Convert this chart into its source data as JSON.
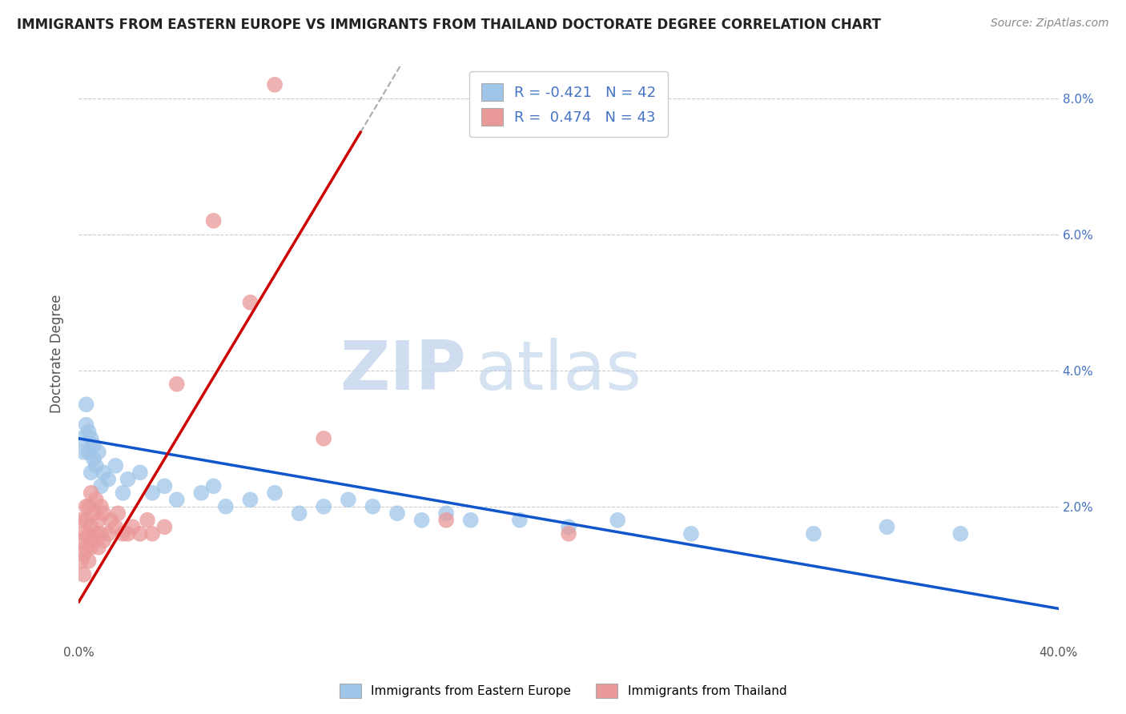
{
  "title": "IMMIGRANTS FROM EASTERN EUROPE VS IMMIGRANTS FROM THAILAND DOCTORATE DEGREE CORRELATION CHART",
  "source": "Source: ZipAtlas.com",
  "ylabel": "Doctorate Degree",
  "xlim": [
    0.0,
    0.4
  ],
  "ylim": [
    0.0,
    0.085
  ],
  "blue_R": -0.421,
  "blue_N": 42,
  "pink_R": 0.474,
  "pink_N": 43,
  "blue_color": "#9fc5e8",
  "pink_color": "#ea9999",
  "blue_line_color": "#1155cc",
  "pink_line_color": "#cc0000",
  "watermark_zip": "ZIP",
  "watermark_atlas": "atlas",
  "legend_label_blue": "Immigrants from Eastern Europe",
  "legend_label_pink": "Immigrants from Thailand",
  "background_color": "#ffffff",
  "grid_color": "#cccccc",
  "blue_scatter_x": [
    0.001,
    0.002,
    0.003,
    0.003,
    0.004,
    0.004,
    0.005,
    0.005,
    0.006,
    0.006,
    0.007,
    0.008,
    0.009,
    0.01,
    0.012,
    0.015,
    0.018,
    0.02,
    0.025,
    0.03,
    0.035,
    0.04,
    0.05,
    0.055,
    0.06,
    0.07,
    0.08,
    0.09,
    0.1,
    0.11,
    0.12,
    0.13,
    0.14,
    0.15,
    0.16,
    0.18,
    0.2,
    0.22,
    0.25,
    0.3,
    0.33,
    0.36
  ],
  "blue_scatter_y": [
    0.03,
    0.028,
    0.032,
    0.035,
    0.031,
    0.028,
    0.03,
    0.025,
    0.027,
    0.029,
    0.026,
    0.028,
    0.023,
    0.025,
    0.024,
    0.026,
    0.022,
    0.024,
    0.025,
    0.022,
    0.023,
    0.021,
    0.022,
    0.023,
    0.02,
    0.021,
    0.022,
    0.019,
    0.02,
    0.021,
    0.02,
    0.019,
    0.018,
    0.019,
    0.018,
    0.018,
    0.017,
    0.018,
    0.016,
    0.016,
    0.017,
    0.016
  ],
  "pink_scatter_x": [
    0.001,
    0.001,
    0.001,
    0.002,
    0.002,
    0.002,
    0.003,
    0.003,
    0.003,
    0.004,
    0.004,
    0.004,
    0.005,
    0.005,
    0.005,
    0.006,
    0.006,
    0.007,
    0.007,
    0.008,
    0.008,
    0.009,
    0.009,
    0.01,
    0.01,
    0.012,
    0.013,
    0.015,
    0.016,
    0.018,
    0.02,
    0.022,
    0.025,
    0.028,
    0.03,
    0.035,
    0.04,
    0.055,
    0.07,
    0.08,
    0.1,
    0.15,
    0.2
  ],
  "pink_scatter_y": [
    0.012,
    0.015,
    0.018,
    0.01,
    0.013,
    0.016,
    0.014,
    0.018,
    0.02,
    0.012,
    0.016,
    0.02,
    0.014,
    0.017,
    0.022,
    0.015,
    0.019,
    0.016,
    0.021,
    0.014,
    0.018,
    0.016,
    0.02,
    0.015,
    0.019,
    0.016,
    0.018,
    0.017,
    0.019,
    0.016,
    0.016,
    0.017,
    0.016,
    0.018,
    0.016,
    0.017,
    0.038,
    0.062,
    0.05,
    0.082,
    0.03,
    0.018,
    0.016
  ],
  "pink_line_x_start": 0.0,
  "pink_line_x_end": 0.115,
  "pink_line_y_start": 0.006,
  "pink_line_y_end": 0.075,
  "blue_line_x_start": 0.0,
  "blue_line_x_end": 0.4,
  "blue_line_y_start": 0.03,
  "blue_line_y_end": 0.005
}
